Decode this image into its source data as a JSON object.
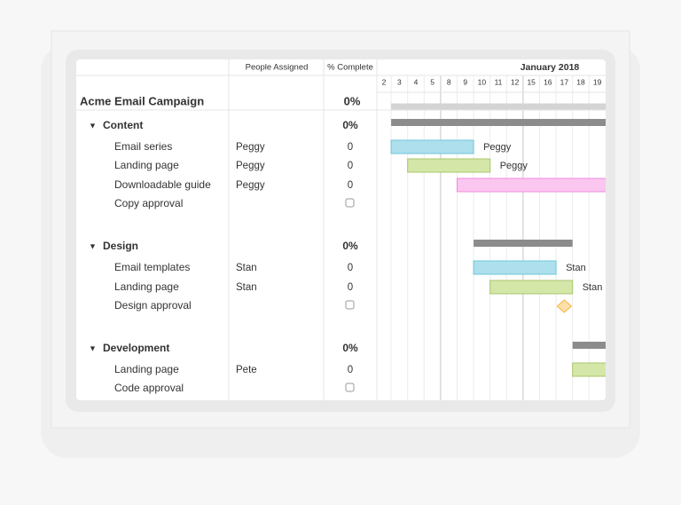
{
  "header": {
    "people": "People Assigned",
    "complete": "% Complete",
    "month": "January 2018",
    "days": [
      2,
      3,
      4,
      5,
      8,
      9,
      10,
      11,
      12,
      15,
      16,
      17,
      18,
      19
    ]
  },
  "project": {
    "name": "Acme Email Campaign",
    "complete": "0%",
    "start": 3,
    "end": 19,
    "color": "#d4d4d4"
  },
  "groups": [
    {
      "name": "Content",
      "complete": "0%",
      "start": 3,
      "end": 19,
      "color": "#8c8c8c",
      "tasks": [
        {
          "name": "Email series",
          "assignee": "Peggy",
          "complete": "0",
          "start": 3,
          "end": 9,
          "color": "#ade0ec",
          "stroke": "#6ec6dd"
        },
        {
          "name": "Landing page",
          "assignee": "Peggy",
          "complete": "0",
          "start": 4,
          "end": 10,
          "color": "#d5e7a8",
          "stroke": "#a8c66c"
        },
        {
          "name": "Downloadable guide",
          "assignee": "Peggy",
          "complete": "0",
          "start": 9,
          "end": 19,
          "color": "#fbc6ef",
          "stroke": "#ee8ddf"
        },
        {
          "name": "Copy approval"
        }
      ]
    },
    {
      "name": "Design",
      "complete": "0%",
      "start": 10,
      "end": 17,
      "color": "#8c8c8c",
      "tasks": [
        {
          "name": "Email templates",
          "assignee": "Stan",
          "complete": "0",
          "start": 10,
          "end": 16,
          "color": "#ade0ec",
          "stroke": "#6ec6dd"
        },
        {
          "name": "Landing page",
          "assignee": "Stan",
          "complete": "0",
          "start": 11,
          "end": 17,
          "color": "#d5e7a8",
          "stroke": "#a8c66c"
        },
        {
          "name": "Design approval",
          "milestone": 17,
          "color": "#fde0a8",
          "stroke": "#f5b440"
        }
      ]
    },
    {
      "name": "Development",
      "complete": "0%",
      "start": 18,
      "end": 19,
      "color": "#8c8c8c",
      "tasks": [
        {
          "name": "Landing page",
          "assignee": "Pete",
          "complete": "0",
          "start": 18,
          "end": 19,
          "color": "#d5e7a8",
          "stroke": "#a8c66c"
        },
        {
          "name": "Code approval"
        }
      ]
    }
  ]
}
